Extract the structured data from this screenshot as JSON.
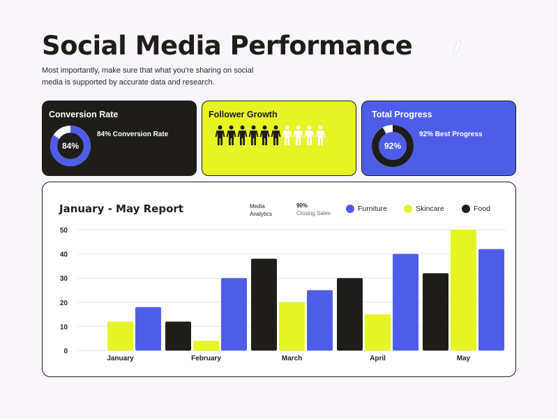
{
  "header": {
    "title": "Social Media Performance",
    "subtitle": "Most importantly, make sure that what you're sharing on social media is supported by accurate data and research."
  },
  "cards": {
    "conversion": {
      "title": "Conversion Rate",
      "value": 84,
      "value_label": "84%",
      "text": "84% Conversion Rate"
    },
    "follower": {
      "title": "Follower Growth",
      "people_total": 10,
      "people_filled": 6
    },
    "progress": {
      "title": "Total Progress",
      "value": 92,
      "value_label": "92%",
      "text": "92% Best Progress"
    }
  },
  "report": {
    "title": "January - May Report",
    "media_label_line1": "Media",
    "media_label_line2": "Analytics",
    "closing_value": "90%",
    "closing_label": "Closing Sales"
  },
  "colors": {
    "dark": "#1f1d1a",
    "yellow": "#e6f425",
    "blue": "#4e5de8",
    "grey_ring": "#d4d4d4"
  },
  "chart_data": {
    "type": "bar",
    "title": "January - May Report",
    "categories": [
      "January",
      "February",
      "March",
      "April",
      "May"
    ],
    "series": [
      {
        "name": "Food",
        "color": "#1f1d1a",
        "values": [
          0,
          12,
          38,
          30,
          32
        ]
      },
      {
        "name": "Skincare",
        "color": "#e6f425",
        "values": [
          12,
          4,
          20,
          15,
          50
        ]
      },
      {
        "name": "Furniture",
        "color": "#4e5de8",
        "values": [
          18,
          30,
          25,
          40,
          42
        ]
      }
    ],
    "y_ticks": [
      "0",
      "10",
      "20",
      "30",
      "40",
      "50"
    ],
    "ylim": [
      0,
      50
    ],
    "grid": true,
    "legend_position": "top-right",
    "legend_order": [
      "Furniture",
      "Skincare",
      "Food"
    ]
  }
}
